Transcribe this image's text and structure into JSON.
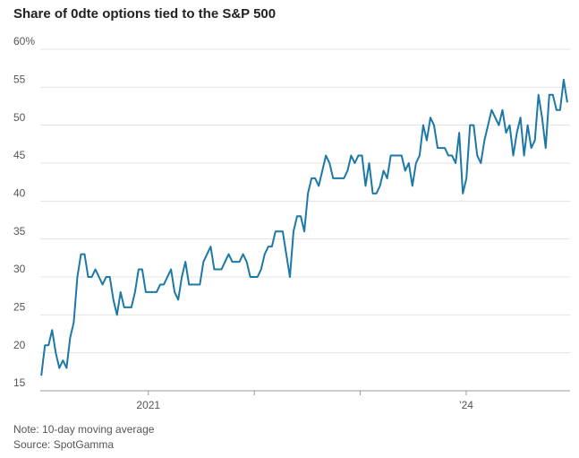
{
  "chart_data": {
    "type": "line",
    "title": "Share of 0dte options tied to the S&P 500",
    "note": "Note: 10-day moving average",
    "source": "Source: SpotGamma",
    "ylim": [
      15,
      60
    ],
    "yticks": [
      15,
      20,
      25,
      30,
      35,
      40,
      45,
      50,
      55,
      {
        "value": 60,
        "label": "60%"
      }
    ],
    "xlim": [
      2019.98,
      2024.98
    ],
    "xticks": [
      2021,
      {
        "value": 2024,
        "label": "’24"
      }
    ],
    "xminorticks": [
      2022,
      2023
    ],
    "grid": true,
    "x": [
      2019.99,
      2020.024,
      2020.058,
      2020.092,
      2020.126,
      2020.16,
      2020.194,
      2020.228,
      2020.262,
      2020.296,
      2020.33,
      2020.364,
      2020.398,
      2020.432,
      2020.466,
      2020.5,
      2020.534,
      2020.568,
      2020.602,
      2020.636,
      2020.67,
      2020.704,
      2020.738,
      2020.772,
      2020.806,
      2020.84,
      2020.874,
      2020.908,
      2020.942,
      2020.976,
      2021.01,
      2021.044,
      2021.078,
      2021.112,
      2021.146,
      2021.18,
      2021.214,
      2021.248,
      2021.282,
      2021.316,
      2021.35,
      2021.384,
      2021.418,
      2021.452,
      2021.486,
      2021.52,
      2021.554,
      2021.588,
      2021.622,
      2021.656,
      2021.69,
      2021.724,
      2021.758,
      2021.792,
      2021.826,
      2021.86,
      2021.894,
      2021.928,
      2021.962,
      2021.996,
      2022.03,
      2022.064,
      2022.098,
      2022.132,
      2022.166,
      2022.2,
      2022.234,
      2022.268,
      2022.302,
      2022.336,
      2022.37,
      2022.404,
      2022.438,
      2022.472,
      2022.506,
      2022.54,
      2022.574,
      2022.608,
      2022.642,
      2022.676,
      2022.71,
      2022.744,
      2022.778,
      2022.812,
      2022.846,
      2022.88,
      2022.914,
      2022.948,
      2022.982,
      2023.016,
      2023.05,
      2023.084,
      2023.118,
      2023.152,
      2023.186,
      2023.22,
      2023.254,
      2023.288,
      2023.322,
      2023.356,
      2023.39,
      2023.424,
      2023.458,
      2023.492,
      2023.526,
      2023.56,
      2023.594,
      2023.628,
      2023.662,
      2023.696,
      2023.73,
      2023.764,
      2023.798,
      2023.832,
      2023.866,
      2023.9,
      2023.934,
      2023.968,
      2024.002,
      2024.036,
      2024.07,
      2024.104,
      2024.138,
      2024.172,
      2024.206,
      2024.24,
      2024.274,
      2024.308,
      2024.342,
      2024.376,
      2024.41,
      2024.444,
      2024.478,
      2024.512,
      2024.546,
      2024.58,
      2024.614,
      2024.648,
      2024.682,
      2024.716,
      2024.75,
      2024.784,
      2024.818,
      2024.852,
      2024.886,
      2024.92,
      2024.954
    ],
    "series": [
      {
        "color": "#1c78a6",
        "values": [
          17,
          21,
          21,
          23,
          20,
          18,
          19,
          18,
          22,
          24,
          30,
          33,
          33,
          30,
          30,
          31,
          30,
          29,
          30,
          30,
          27,
          25,
          28,
          26,
          26,
          26,
          28,
          31,
          31,
          28,
          28,
          28,
          28,
          29,
          29,
          30,
          31,
          28,
          27,
          30,
          32,
          29,
          29,
          29,
          29,
          32,
          33,
          34,
          31,
          31,
          31,
          32,
          33,
          32,
          32,
          32,
          33,
          32,
          30,
          30,
          30,
          31,
          33,
          34,
          34,
          36,
          36,
          36,
          33,
          30,
          36,
          38,
          38,
          36,
          41,
          43,
          43,
          42,
          44,
          46,
          45,
          43,
          43,
          43,
          43,
          44,
          46,
          45,
          46,
          46,
          42,
          45,
          41,
          41,
          42,
          44,
          43,
          46,
          46,
          46,
          46,
          44,
          45,
          42,
          45,
          46,
          50,
          48,
          51,
          50,
          47,
          47,
          47,
          46,
          46,
          45,
          49,
          41,
          43,
          50,
          50,
          46,
          45,
          48,
          50,
          52,
          51,
          50,
          52,
          49,
          50,
          46,
          49,
          51,
          46,
          50,
          47,
          48,
          54,
          51,
          47,
          54,
          54,
          52,
          52,
          56,
          53
        ]
      }
    ]
  }
}
